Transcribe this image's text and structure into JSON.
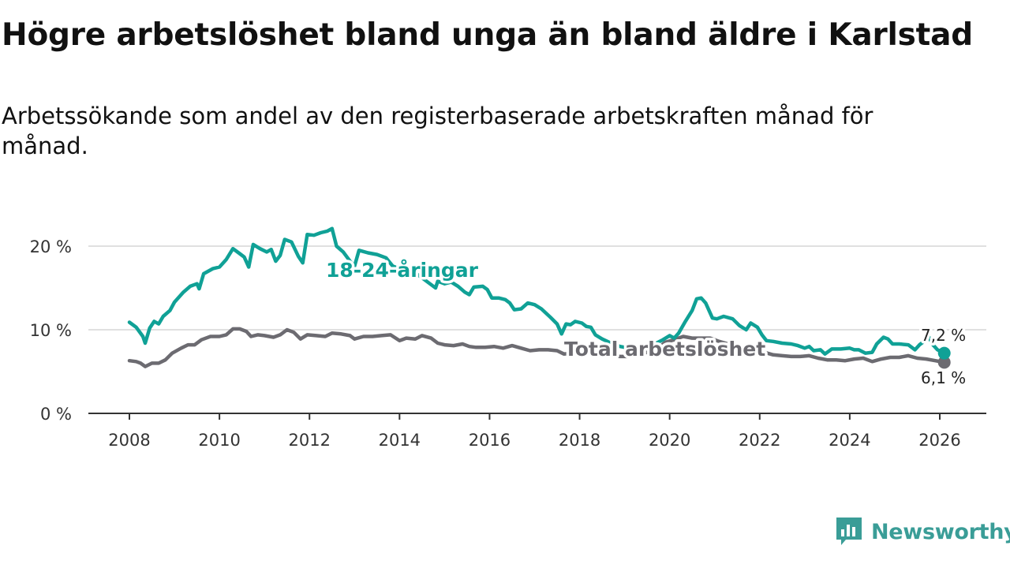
{
  "title": "Högre arbetslöshet bland unga än bland äldre i Karlstad",
  "subtitle": "Arbetssökande som andel av den registerbaserade arbetskraften månad för månad.",
  "brand": {
    "name": "Newsworthy",
    "color": "#3a9d97"
  },
  "chart_data": {
    "type": "line",
    "title": "Högre arbetslöshet bland unga än bland äldre i Karlstad",
    "subtitle": "Arbetssökande som andel av den registerbaserade arbetskraften månad för månad.",
    "xlabel": "",
    "ylabel": "",
    "xlim": [
      2007.6,
      2026.5
    ],
    "ylim": [
      0,
      22
    ],
    "grid": true,
    "x_ticks": [
      2008,
      2010,
      2012,
      2014,
      2016,
      2018,
      2020,
      2022,
      2024,
      2026
    ],
    "y_ticks": [
      0,
      10,
      20
    ],
    "y_tick_labels": [
      "0 %",
      "10 %",
      "20 %"
    ],
    "series": [
      {
        "name": "18-24-åringar",
        "label": "18-24-åringar",
        "color": "#10a196",
        "end_label": "7,2 %",
        "points": [
          [
            2008.0,
            10.9
          ],
          [
            2008.15,
            10.3
          ],
          [
            2008.3,
            9.2
          ],
          [
            2008.35,
            8.4
          ],
          [
            2008.45,
            10.2
          ],
          [
            2008.55,
            11.0
          ],
          [
            2008.65,
            10.7
          ],
          [
            2008.75,
            11.6
          ],
          [
            2008.9,
            12.3
          ],
          [
            2009.0,
            13.3
          ],
          [
            2009.2,
            14.5
          ],
          [
            2009.35,
            15.2
          ],
          [
            2009.5,
            15.5
          ],
          [
            2009.55,
            14.9
          ],
          [
            2009.65,
            16.7
          ],
          [
            2009.85,
            17.3
          ],
          [
            2010.0,
            17.5
          ],
          [
            2010.15,
            18.4
          ],
          [
            2010.3,
            19.7
          ],
          [
            2010.45,
            19.1
          ],
          [
            2010.55,
            18.7
          ],
          [
            2010.65,
            17.5
          ],
          [
            2010.75,
            20.2
          ],
          [
            2010.9,
            19.7
          ],
          [
            2011.05,
            19.3
          ],
          [
            2011.15,
            19.6
          ],
          [
            2011.25,
            18.2
          ],
          [
            2011.35,
            18.9
          ],
          [
            2011.45,
            20.8
          ],
          [
            2011.6,
            20.5
          ],
          [
            2011.75,
            18.8
          ],
          [
            2011.85,
            18.0
          ],
          [
            2011.95,
            21.4
          ],
          [
            2012.1,
            21.3
          ],
          [
            2012.25,
            21.6
          ],
          [
            2012.4,
            21.8
          ],
          [
            2012.5,
            22.1
          ],
          [
            2012.6,
            20.0
          ],
          [
            2012.75,
            19.3
          ],
          [
            2012.9,
            18.2
          ],
          [
            2013.0,
            17.6
          ],
          [
            2013.1,
            19.5
          ],
          [
            2013.3,
            19.2
          ],
          [
            2013.5,
            19.0
          ],
          [
            2013.7,
            18.6
          ],
          [
            2013.85,
            17.6
          ],
          [
            2014.05,
            17.2
          ],
          [
            2014.2,
            17.0
          ],
          [
            2014.4,
            16.6
          ],
          [
            2014.6,
            15.8
          ],
          [
            2014.8,
            15.0
          ],
          [
            2014.85,
            15.8
          ],
          [
            2015.0,
            15.5
          ],
          [
            2015.15,
            15.7
          ],
          [
            2015.3,
            15.2
          ],
          [
            2015.45,
            14.5
          ],
          [
            2015.55,
            14.2
          ],
          [
            2015.65,
            15.1
          ],
          [
            2015.85,
            15.2
          ],
          [
            2015.95,
            14.8
          ],
          [
            2016.05,
            13.8
          ],
          [
            2016.2,
            13.8
          ],
          [
            2016.35,
            13.6
          ],
          [
            2016.45,
            13.2
          ],
          [
            2016.55,
            12.4
          ],
          [
            2016.7,
            12.5
          ],
          [
            2016.85,
            13.2
          ],
          [
            2017.0,
            13.0
          ],
          [
            2017.15,
            12.5
          ],
          [
            2017.35,
            11.5
          ],
          [
            2017.5,
            10.7
          ],
          [
            2017.6,
            9.5
          ],
          [
            2017.7,
            10.7
          ],
          [
            2017.8,
            10.6
          ],
          [
            2017.9,
            11.0
          ],
          [
            2018.05,
            10.8
          ],
          [
            2018.15,
            10.4
          ],
          [
            2018.25,
            10.3
          ],
          [
            2018.35,
            9.4
          ],
          [
            2018.5,
            8.9
          ],
          [
            2018.7,
            8.4
          ],
          [
            2018.9,
            8.0
          ],
          [
            2019.1,
            7.8
          ],
          [
            2019.3,
            7.6
          ],
          [
            2019.5,
            7.9
          ],
          [
            2019.7,
            8.4
          ],
          [
            2019.85,
            8.8
          ],
          [
            2020.0,
            9.3
          ],
          [
            2020.1,
            9.0
          ],
          [
            2020.2,
            9.6
          ],
          [
            2020.35,
            11.0
          ],
          [
            2020.5,
            12.3
          ],
          [
            2020.6,
            13.7
          ],
          [
            2020.7,
            13.8
          ],
          [
            2020.8,
            13.2
          ],
          [
            2020.95,
            11.4
          ],
          [
            2021.05,
            11.3
          ],
          [
            2021.2,
            11.6
          ],
          [
            2021.4,
            11.3
          ],
          [
            2021.55,
            10.5
          ],
          [
            2021.7,
            10.0
          ],
          [
            2021.8,
            10.8
          ],
          [
            2021.95,
            10.3
          ],
          [
            2022.05,
            9.4
          ],
          [
            2022.15,
            8.7
          ],
          [
            2022.3,
            8.6
          ],
          [
            2022.5,
            8.4
          ],
          [
            2022.7,
            8.3
          ],
          [
            2022.85,
            8.1
          ],
          [
            2023.0,
            7.8
          ],
          [
            2023.1,
            8.0
          ],
          [
            2023.2,
            7.5
          ],
          [
            2023.35,
            7.6
          ],
          [
            2023.45,
            7.1
          ],
          [
            2023.6,
            7.7
          ],
          [
            2023.8,
            7.7
          ],
          [
            2024.0,
            7.8
          ],
          [
            2024.1,
            7.6
          ],
          [
            2024.2,
            7.6
          ],
          [
            2024.35,
            7.2
          ],
          [
            2024.5,
            7.3
          ],
          [
            2024.6,
            8.3
          ],
          [
            2024.75,
            9.1
          ],
          [
            2024.85,
            8.9
          ],
          [
            2024.95,
            8.3
          ],
          [
            2025.1,
            8.3
          ],
          [
            2025.3,
            8.2
          ],
          [
            2025.45,
            7.6
          ],
          [
            2025.55,
            8.2
          ],
          [
            2025.65,
            8.6
          ],
          [
            2025.75,
            9.2
          ],
          [
            2025.85,
            8.2
          ],
          [
            2025.95,
            7.6
          ],
          [
            2026.1,
            7.2
          ]
        ]
      },
      {
        "name": "Total arbetslöshet",
        "label": "Total arbetslöshet",
        "color": "#6c6b71",
        "end_label": "6,1 %",
        "points": [
          [
            2008.0,
            6.3
          ],
          [
            2008.15,
            6.2
          ],
          [
            2008.25,
            6.0
          ],
          [
            2008.35,
            5.6
          ],
          [
            2008.5,
            6.0
          ],
          [
            2008.65,
            6.0
          ],
          [
            2008.8,
            6.4
          ],
          [
            2008.95,
            7.2
          ],
          [
            2009.15,
            7.8
          ],
          [
            2009.3,
            8.2
          ],
          [
            2009.45,
            8.2
          ],
          [
            2009.6,
            8.8
          ],
          [
            2009.8,
            9.2
          ],
          [
            2010.0,
            9.2
          ],
          [
            2010.15,
            9.4
          ],
          [
            2010.3,
            10.1
          ],
          [
            2010.45,
            10.1
          ],
          [
            2010.6,
            9.8
          ],
          [
            2010.7,
            9.2
          ],
          [
            2010.85,
            9.4
          ],
          [
            2011.0,
            9.3
          ],
          [
            2011.2,
            9.1
          ],
          [
            2011.35,
            9.4
          ],
          [
            2011.5,
            10.0
          ],
          [
            2011.65,
            9.7
          ],
          [
            2011.8,
            8.9
          ],
          [
            2011.95,
            9.4
          ],
          [
            2012.15,
            9.3
          ],
          [
            2012.35,
            9.2
          ],
          [
            2012.5,
            9.6
          ],
          [
            2012.7,
            9.5
          ],
          [
            2012.9,
            9.3
          ],
          [
            2013.0,
            8.9
          ],
          [
            2013.2,
            9.2
          ],
          [
            2013.4,
            9.2
          ],
          [
            2013.6,
            9.3
          ],
          [
            2013.8,
            9.4
          ],
          [
            2014.0,
            8.7
          ],
          [
            2014.15,
            9.0
          ],
          [
            2014.35,
            8.9
          ],
          [
            2014.5,
            9.3
          ],
          [
            2014.7,
            9.0
          ],
          [
            2014.85,
            8.4
          ],
          [
            2015.0,
            8.2
          ],
          [
            2015.2,
            8.1
          ],
          [
            2015.4,
            8.3
          ],
          [
            2015.55,
            8.0
          ],
          [
            2015.7,
            7.9
          ],
          [
            2015.9,
            7.9
          ],
          [
            2016.1,
            8.0
          ],
          [
            2016.3,
            7.8
          ],
          [
            2016.5,
            8.1
          ],
          [
            2016.7,
            7.8
          ],
          [
            2016.9,
            7.5
          ],
          [
            2017.1,
            7.6
          ],
          [
            2017.3,
            7.6
          ],
          [
            2017.5,
            7.5
          ],
          [
            2017.65,
            7.1
          ],
          [
            2017.85,
            7.2
          ],
          [
            2018.05,
            7.2
          ],
          [
            2018.3,
            7.3
          ],
          [
            2018.5,
            7.0
          ],
          [
            2018.7,
            6.9
          ],
          [
            2018.9,
            6.8
          ],
          [
            2019.1,
            6.8
          ],
          [
            2019.3,
            7.0
          ],
          [
            2019.5,
            7.3
          ],
          [
            2019.7,
            7.6
          ],
          [
            2019.9,
            8.5
          ],
          [
            2020.1,
            8.8
          ],
          [
            2020.3,
            9.2
          ],
          [
            2020.5,
            9.0
          ],
          [
            2020.7,
            9.0
          ],
          [
            2020.9,
            9.0
          ],
          [
            2021.1,
            8.6
          ],
          [
            2021.3,
            8.3
          ],
          [
            2021.5,
            8.0
          ],
          [
            2021.7,
            7.8
          ],
          [
            2021.9,
            7.6
          ],
          [
            2022.1,
            7.3
          ],
          [
            2022.3,
            7.0
          ],
          [
            2022.5,
            6.9
          ],
          [
            2022.7,
            6.8
          ],
          [
            2022.9,
            6.8
          ],
          [
            2023.1,
            6.9
          ],
          [
            2023.3,
            6.6
          ],
          [
            2023.5,
            6.4
          ],
          [
            2023.7,
            6.4
          ],
          [
            2023.9,
            6.3
          ],
          [
            2024.1,
            6.5
          ],
          [
            2024.3,
            6.6
          ],
          [
            2024.5,
            6.2
          ],
          [
            2024.7,
            6.5
          ],
          [
            2024.9,
            6.7
          ],
          [
            2025.1,
            6.7
          ],
          [
            2025.3,
            6.9
          ],
          [
            2025.5,
            6.6
          ],
          [
            2025.7,
            6.5
          ],
          [
            2025.9,
            6.3
          ],
          [
            2026.1,
            6.1
          ]
        ]
      }
    ]
  }
}
